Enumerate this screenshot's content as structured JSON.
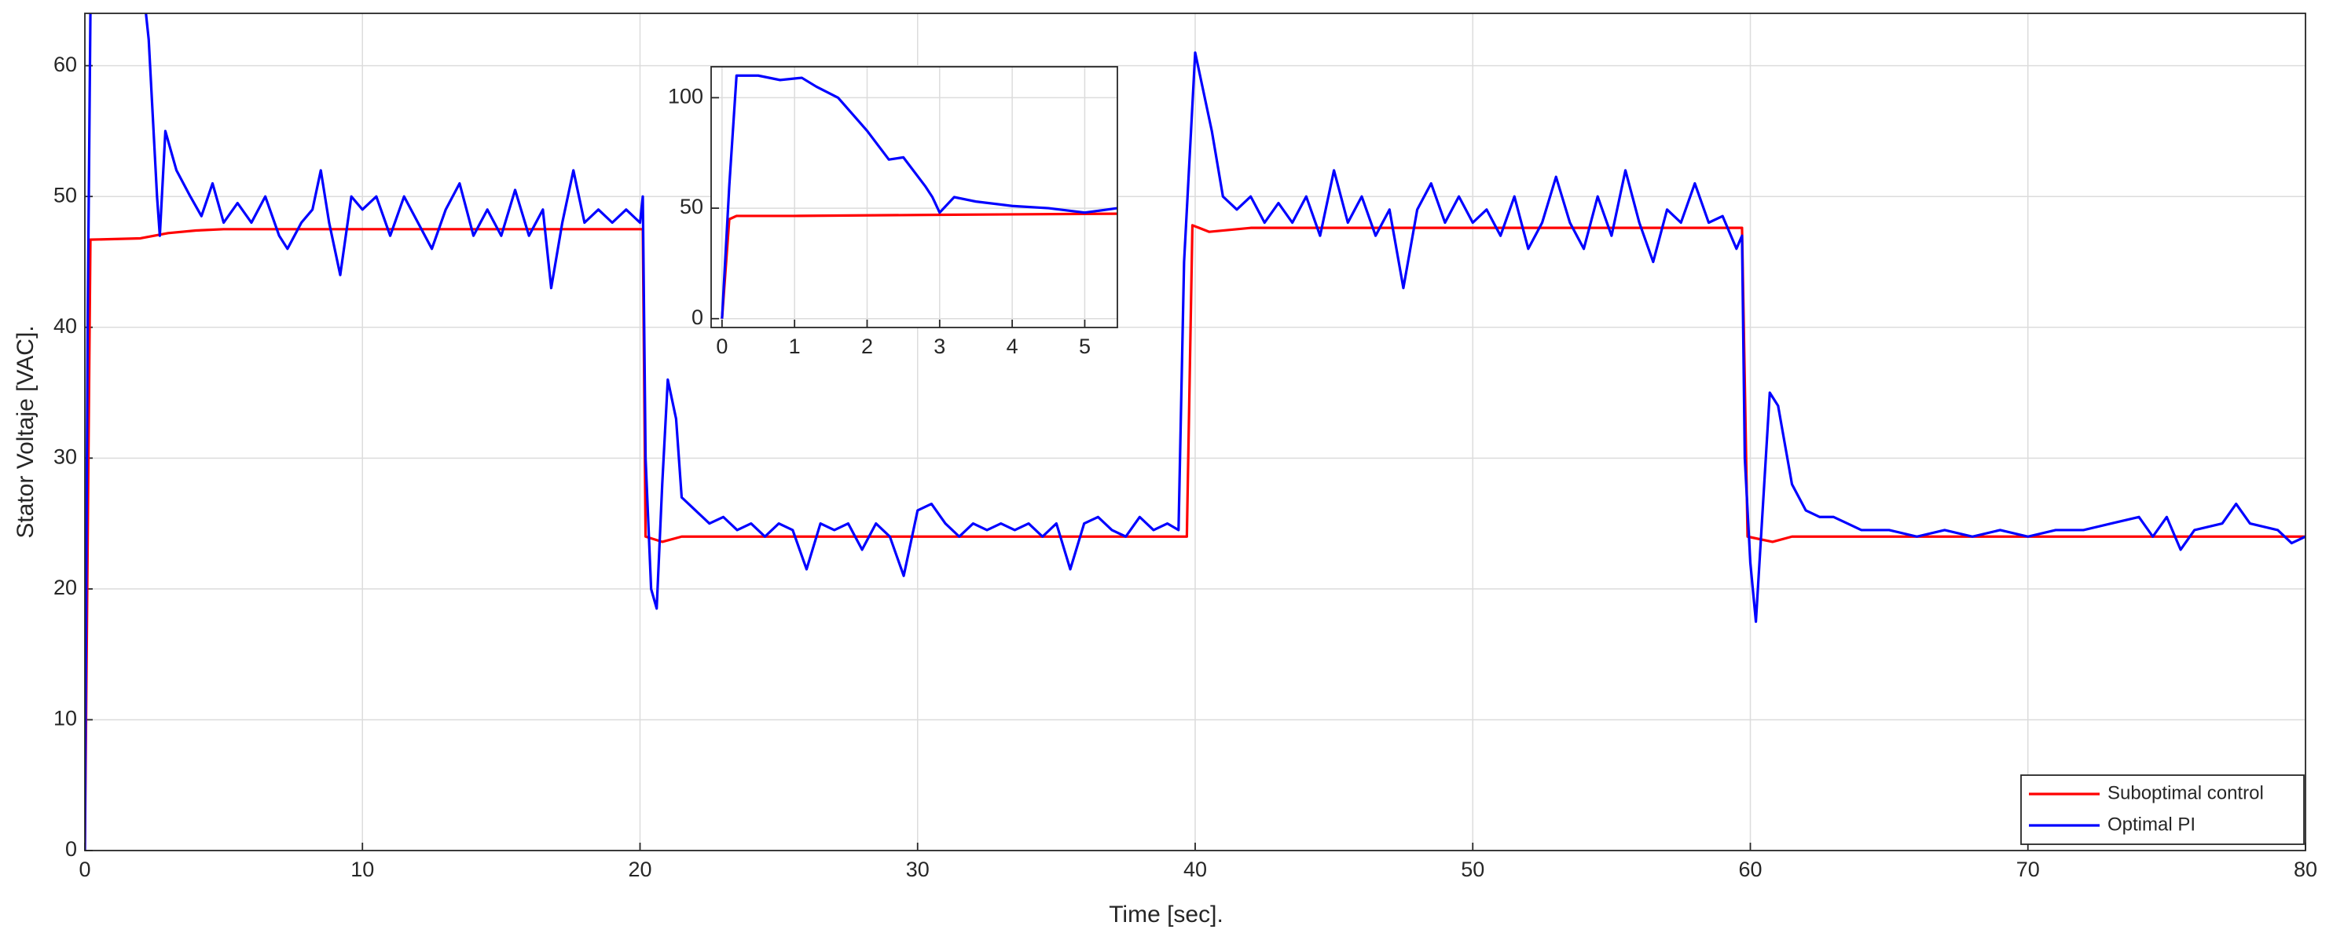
{
  "chart_data": [
    {
      "type": "line",
      "xlabel": "Time [sec].",
      "ylabel": "Stator Voltaje [VAC].",
      "xlim": [
        0,
        80
      ],
      "ylim": [
        0,
        64
      ],
      "xticks": [
        0,
        10,
        20,
        30,
        40,
        50,
        60,
        70,
        80
      ],
      "yticks": [
        0,
        10,
        20,
        30,
        40,
        50,
        60
      ],
      "grid": true,
      "legend": "lower right",
      "series": [
        {
          "name": "Suboptimal control",
          "color": "#ff0000",
          "x": [
            0,
            0.2,
            2,
            3,
            4,
            5,
            20.1,
            20.2,
            20.8,
            21.5,
            39.7,
            39.9,
            40.5,
            42,
            59.7,
            59.9,
            60.8,
            61.5,
            80
          ],
          "values": [
            0,
            46.7,
            46.8,
            47.2,
            47.4,
            47.5,
            47.5,
            24,
            23.6,
            24,
            24,
            47.8,
            47.3,
            47.6,
            47.6,
            24,
            23.6,
            24,
            24
          ]
        },
        {
          "name": "Optimal PI",
          "color": "#0000ff",
          "x": [
            0,
            0.1,
            0.2,
            0.3,
            2,
            2.3,
            2.6,
            2.7,
            2.9,
            3.3,
            3.8,
            4.2,
            4.6,
            5,
            5.5,
            6,
            6.5,
            7,
            7.3,
            7.8,
            8.2,
            8.5,
            8.8,
            9.2,
            9.6,
            10,
            10.5,
            11,
            11.5,
            12,
            12.5,
            13,
            13.5,
            14,
            14.5,
            15,
            15.5,
            16,
            16.5,
            16.8,
            17.2,
            17.6,
            18,
            18.5,
            19,
            19.5,
            20,
            20.1,
            20.2,
            20.4,
            20.6,
            20.8,
            21,
            21.3,
            21.5,
            22,
            22.5,
            23,
            23.5,
            24,
            24.5,
            25,
            25.5,
            26,
            26.5,
            27,
            27.5,
            28,
            28.5,
            29,
            29.5,
            30,
            30.5,
            31,
            31.5,
            32,
            32.5,
            33,
            33.5,
            34,
            34.5,
            35,
            35.5,
            36,
            36.5,
            37,
            37.5,
            38,
            38.5,
            39,
            39.4,
            39.6,
            40,
            40.3,
            40.6,
            41,
            41.5,
            42,
            42.5,
            43,
            43.5,
            44,
            44.5,
            45,
            45.5,
            46,
            46.5,
            47,
            47.5,
            48,
            48.5,
            49,
            49.5,
            50,
            50.5,
            51,
            51.5,
            52,
            52.5,
            53,
            53.5,
            54,
            54.5,
            55,
            55.5,
            56,
            56.5,
            57,
            57.5,
            58,
            58.5,
            59,
            59.5,
            59.7,
            59.8,
            60,
            60.2,
            60.5,
            60.7,
            61,
            61.5,
            62,
            62.5,
            63,
            63.5,
            64,
            65,
            66,
            67,
            68,
            69,
            70,
            71,
            72,
            73,
            74,
            74.5,
            75,
            75.5,
            76,
            77,
            77.5,
            78,
            79,
            79.5,
            80
          ],
          "values": [
            0,
            40,
            64,
            70,
            68,
            62,
            50,
            47,
            55,
            52,
            50,
            48.5,
            51,
            48,
            49.5,
            48,
            50,
            47,
            46,
            48,
            49,
            52,
            48,
            44,
            50,
            49,
            50,
            47,
            50,
            48,
            46,
            49,
            51,
            47,
            49,
            47,
            50.5,
            47,
            49,
            43,
            48,
            52,
            48,
            49,
            48,
            49,
            48,
            50,
            30,
            20,
            18.5,
            28,
            36,
            33,
            27,
            26,
            25,
            25.5,
            24.5,
            25,
            24,
            25,
            24.5,
            21.5,
            25,
            24.5,
            25,
            23,
            25,
            24,
            21,
            26,
            26.5,
            25,
            24,
            25,
            24.5,
            25,
            24.5,
            25,
            24,
            25,
            21.5,
            25,
            25.5,
            24.5,
            24,
            25.5,
            24.5,
            25,
            24.5,
            45,
            61,
            58,
            55,
            50,
            49,
            50,
            48,
            49.5,
            48,
            50,
            47,
            52,
            48,
            50,
            47,
            49,
            43,
            49,
            51,
            48,
            50,
            48,
            49,
            47,
            50,
            46,
            48,
            51.5,
            48,
            46,
            50,
            47,
            52,
            48,
            45,
            49,
            48,
            51,
            48,
            48.5,
            46,
            47,
            30,
            22,
            17.5,
            28,
            35,
            34,
            28,
            26,
            25.5,
            25.5,
            25,
            24.5,
            24.5,
            24,
            24.5,
            24,
            24.5,
            24,
            24.5,
            24.5,
            25,
            25.5,
            24,
            25.5,
            23,
            24.5,
            25,
            26.5,
            25,
            24.5,
            23.5,
            24
          ]
        }
      ]
    },
    {
      "type": "line",
      "xlim": [
        -0.15,
        5.45
      ],
      "ylim": [
        -4,
        114
      ],
      "xticks": [
        0,
        1,
        2,
        3,
        4,
        5
      ],
      "yticks": [
        0,
        50,
        100
      ],
      "grid": true,
      "series": [
        {
          "color": "#ff0000",
          "x": [
            0,
            0.1,
            0.2,
            1,
            3,
            5.45
          ],
          "values": [
            0,
            45,
            46.5,
            46.5,
            47,
            47.5
          ]
        },
        {
          "color": "#0000ff",
          "x": [
            0,
            0.1,
            0.2,
            0.5,
            0.8,
            1.1,
            1.3,
            1.6,
            2,
            2.3,
            2.5,
            2.8,
            2.9,
            3,
            3.2,
            3.5,
            4,
            4.5,
            5,
            5.45
          ],
          "values": [
            0,
            60,
            110,
            110,
            108,
            109,
            105,
            100,
            85,
            72,
            73,
            60,
            55,
            48,
            55,
            53,
            51,
            50,
            48,
            50
          ]
        }
      ]
    }
  ]
}
